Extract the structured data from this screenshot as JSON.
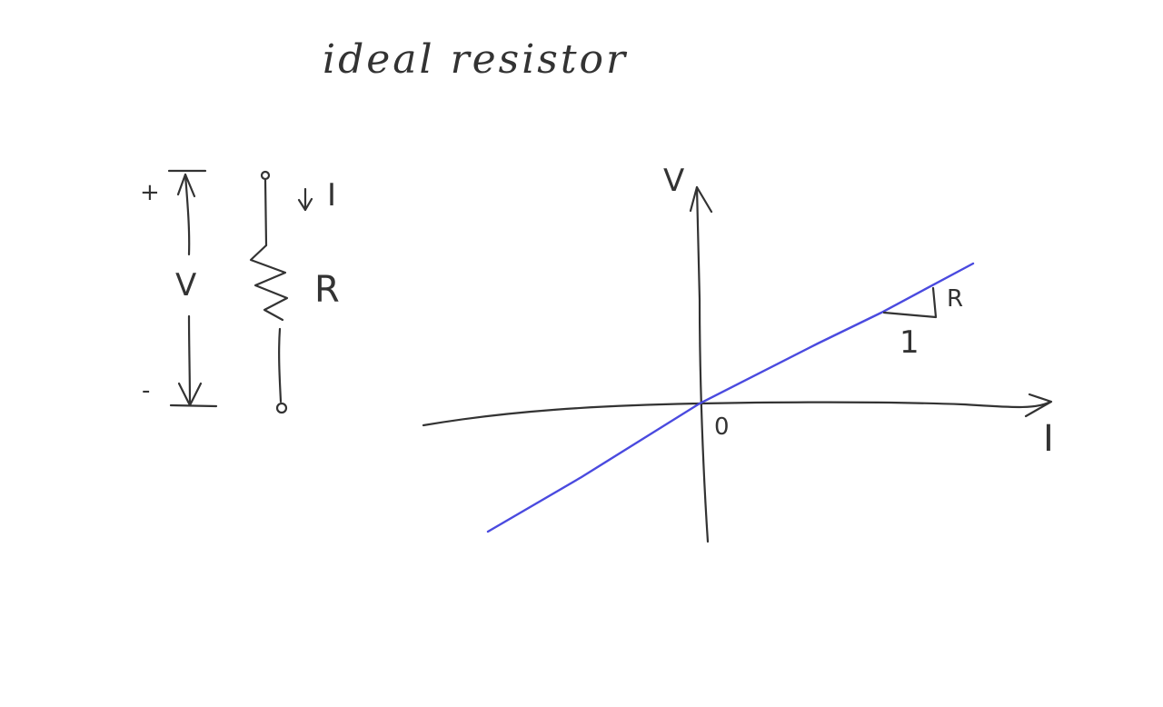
{
  "title": "ideal resistor",
  "circuit": {
    "plus_sign": "+",
    "minus_sign": "-",
    "voltage_label": "V",
    "current_label": "I",
    "resistor_label": "R"
  },
  "graph": {
    "y_axis_label": "V",
    "x_axis_label": "I",
    "origin_label": "0",
    "slope_rise_label": "R",
    "slope_run_label": "1",
    "line_color": "#4a4adf",
    "ink_color": "#333333"
  }
}
